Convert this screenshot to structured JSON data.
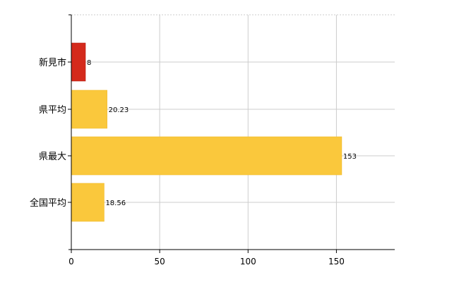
{
  "chart_data": {
    "type": "bar",
    "orientation": "horizontal",
    "categories": [
      "新見市",
      "県平均",
      "県最大",
      "全国平均"
    ],
    "values": [
      8,
      20.23,
      153,
      18.56
    ],
    "value_labels": [
      "8",
      "20.23",
      "153",
      "18.56"
    ],
    "bar_colors": [
      "#d42a1c",
      "#fac83c",
      "#fac83c",
      "#fac83c"
    ],
    "title": "",
    "xlabel": "",
    "ylabel": "",
    "xlim": [
      0,
      183
    ],
    "xticks": [
      "0",
      "50",
      "100",
      "150"
    ],
    "grid": true,
    "legend": "none"
  }
}
